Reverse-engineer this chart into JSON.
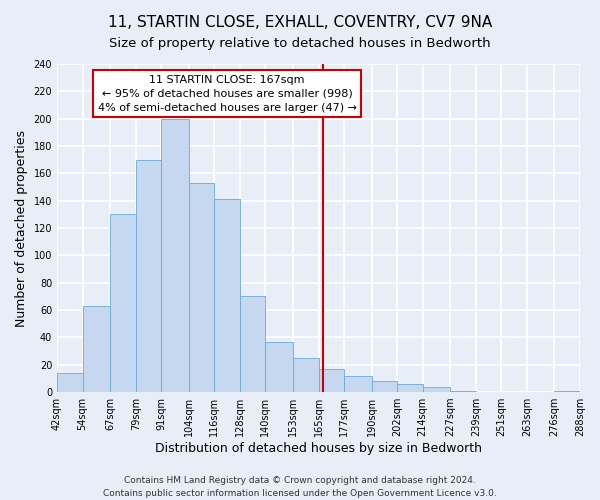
{
  "title": "11, STARTIN CLOSE, EXHALL, COVENTRY, CV7 9NA",
  "subtitle": "Size of property relative to detached houses in Bedworth",
  "xlabel": "Distribution of detached houses by size in Bedworth",
  "ylabel": "Number of detached properties",
  "bin_edges": [
    42,
    54,
    67,
    79,
    91,
    104,
    116,
    128,
    140,
    153,
    165,
    177,
    190,
    202,
    214,
    227,
    239,
    251,
    263,
    276,
    288
  ],
  "bar_heights": [
    14,
    63,
    130,
    170,
    200,
    153,
    141,
    70,
    37,
    25,
    17,
    12,
    8,
    6,
    4,
    1,
    0,
    0,
    0,
    1
  ],
  "bar_color": "#c5d8f0",
  "bar_edgecolor": "#6aaad4",
  "vline_x": 167,
  "vline_color": "#cc0000",
  "annotation_title": "11 STARTIN CLOSE: 167sqm",
  "annotation_line1": "← 95% of detached houses are smaller (998)",
  "annotation_line2": "4% of semi-detached houses are larger (47) →",
  "annotation_box_facecolor": "#ffffff",
  "annotation_box_edgecolor": "#cc0000",
  "ylim": [
    0,
    240
  ],
  "yticks": [
    0,
    20,
    40,
    60,
    80,
    100,
    120,
    140,
    160,
    180,
    200,
    220,
    240
  ],
  "tick_labels": [
    "42sqm",
    "54sqm",
    "67sqm",
    "79sqm",
    "91sqm",
    "104sqm",
    "116sqm",
    "128sqm",
    "140sqm",
    "153sqm",
    "165sqm",
    "177sqm",
    "190sqm",
    "202sqm",
    "214sqm",
    "227sqm",
    "239sqm",
    "251sqm",
    "263sqm",
    "276sqm",
    "288sqm"
  ],
  "footer_line1": "Contains HM Land Registry data © Crown copyright and database right 2024.",
  "footer_line2": "Contains public sector information licensed under the Open Government Licence v3.0.",
  "background_color": "#e8eef8",
  "plot_bg_color": "#e8eef8",
  "title_fontsize": 11,
  "subtitle_fontsize": 9.5,
  "axis_label_fontsize": 9,
  "tick_fontsize": 7,
  "annotation_fontsize": 8,
  "footer_fontsize": 6.5,
  "grid_color": "#ffffff",
  "grid_linewidth": 1.2
}
